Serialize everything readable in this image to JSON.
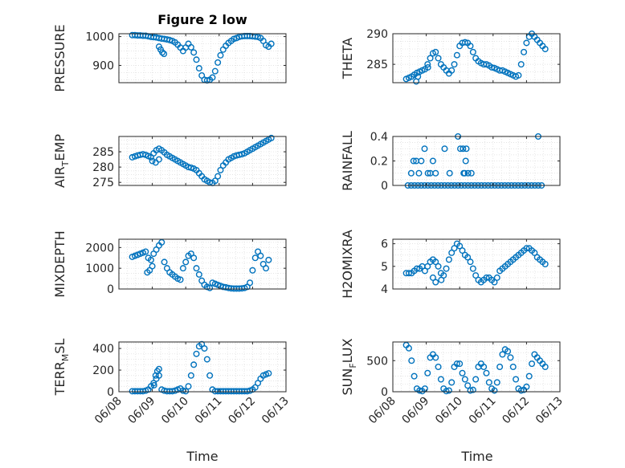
{
  "figure": {
    "title": "Figure 2 low",
    "bg": "#ffffff"
  },
  "style": {
    "marker_color": "#0072bd",
    "axis_color": "#262626",
    "grid_color": "#dcdcdc"
  },
  "chart_data": [
    {
      "type": "scatter",
      "ylabel_main": "PRESSURE",
      "ylabel_sub": "",
      "title": "Figure 2 low",
      "xlabel": "",
      "xlim": [
        0,
        5
      ],
      "ylim": [
        840,
        1010
      ],
      "yticks": [
        900,
        1000
      ],
      "x": [
        0.4,
        0.48,
        0.56,
        0.64,
        0.72,
        0.8,
        0.88,
        0.96,
        1.04,
        1.12,
        1.2,
        1.28,
        1.36,
        1.44,
        1.52,
        1.6,
        1.68,
        1.76,
        1.84,
        1.92,
        2.0,
        2.08,
        2.16,
        2.24,
        2.32,
        2.4,
        2.48,
        2.56,
        2.64,
        2.72,
        2.8,
        2.88,
        2.96,
        3.04,
        3.12,
        3.2,
        3.28,
        3.36,
        3.44,
        3.52,
        3.6,
        3.68,
        3.76,
        3.84,
        3.92,
        4.0,
        4.08,
        4.16,
        4.24,
        4.32,
        4.4,
        4.48,
        4.56,
        1.2,
        1.25,
        1.3,
        1.35
      ],
      "y": [
        1005,
        1005,
        1004,
        1004,
        1003,
        1003,
        1001,
        999,
        998,
        997,
        995,
        993,
        992,
        990,
        988,
        985,
        980,
        972,
        962,
        950,
        962,
        975,
        963,
        945,
        920,
        890,
        865,
        850,
        848,
        850,
        858,
        880,
        910,
        935,
        955,
        968,
        978,
        985,
        992,
        995,
        999,
        1001,
        1002,
        1002,
        1002,
        1001,
        1000,
        999,
        995,
        985,
        970,
        965,
        975,
        965,
        955,
        945,
        940
      ]
    },
    {
      "type": "scatter",
      "ylabel_main": "THETA",
      "ylabel_sub": "",
      "xlim": [
        0,
        5
      ],
      "ylim": [
        282,
        290
      ],
      "yticks": [
        285,
        290
      ],
      "x": [
        0.4,
        0.48,
        0.56,
        0.64,
        0.72,
        0.8,
        0.88,
        0.96,
        1.04,
        1.12,
        1.2,
        1.28,
        1.36,
        1.44,
        1.52,
        1.6,
        1.68,
        1.76,
        1.84,
        1.92,
        2.0,
        2.08,
        2.16,
        2.24,
        2.32,
        2.4,
        2.48,
        2.56,
        2.64,
        2.72,
        2.8,
        2.88,
        2.96,
        3.04,
        3.12,
        3.2,
        3.28,
        3.36,
        3.44,
        3.52,
        3.6,
        3.68,
        3.76,
        3.84,
        3.92,
        4.0,
        4.08,
        4.16,
        4.24,
        4.32,
        4.4,
        4.48,
        4.56,
        0.7,
        0.75,
        1.05
      ],
      "y": [
        282.6,
        282.8,
        283.0,
        283.3,
        283.6,
        283.8,
        284.0,
        284.2,
        285.0,
        286.0,
        286.8,
        287.0,
        286.0,
        285.0,
        284.5,
        284.0,
        283.5,
        284.0,
        285.0,
        286.5,
        288.0,
        288.5,
        288.6,
        288.5,
        288.0,
        287.0,
        286.0,
        285.5,
        285.2,
        285.0,
        285.0,
        284.8,
        284.5,
        284.4,
        284.2,
        284.0,
        284.0,
        283.8,
        283.6,
        283.4,
        283.2,
        283.0,
        283.2,
        285.0,
        287.0,
        288.5,
        289.5,
        290.2,
        289.5,
        289.0,
        288.5,
        288.0,
        287.5,
        282.2,
        283.0,
        284.5
      ]
    },
    {
      "type": "scatter",
      "ylabel_main": "AIR",
      "ylabel_sub": "T",
      "ylabel_tail": "EMP",
      "xlim": [
        0,
        5
      ],
      "ylim": [
        274,
        290
      ],
      "yticks": [
        275,
        280,
        285
      ],
      "x": [
        0.4,
        0.48,
        0.56,
        0.64,
        0.72,
        0.8,
        0.88,
        0.96,
        1.04,
        1.12,
        1.2,
        1.28,
        1.36,
        1.44,
        1.52,
        1.6,
        1.68,
        1.76,
        1.84,
        1.92,
        2.0,
        2.08,
        2.16,
        2.24,
        2.32,
        2.4,
        2.48,
        2.56,
        2.64,
        2.72,
        2.8,
        2.88,
        2.96,
        3.04,
        3.12,
        3.2,
        3.28,
        3.36,
        3.44,
        3.52,
        3.6,
        3.68,
        3.76,
        3.84,
        3.92,
        4.0,
        4.08,
        4.16,
        4.24,
        4.32,
        4.4,
        4.48,
        4.56,
        1.0,
        1.1,
        1.2
      ],
      "y": [
        283.2,
        283.5,
        283.8,
        284.0,
        284.2,
        284.0,
        283.6,
        283.2,
        284.5,
        285.5,
        286.0,
        285.5,
        284.8,
        284.0,
        283.5,
        283.0,
        282.5,
        282.0,
        281.5,
        281.0,
        280.5,
        280.0,
        279.8,
        279.5,
        279.0,
        278.0,
        277.0,
        276.0,
        275.5,
        275.0,
        274.8,
        275.5,
        277.0,
        279.0,
        280.5,
        281.5,
        282.5,
        283.0,
        283.5,
        283.8,
        284.0,
        284.2,
        284.5,
        285.0,
        285.5,
        286.0,
        286.5,
        287.0,
        287.5,
        288.0,
        288.5,
        289.0,
        289.5,
        282.0,
        281.5,
        282.5
      ]
    },
    {
      "type": "scatter",
      "ylabel_main": "RAINFALL",
      "ylabel_sub": "",
      "xlim": [
        0,
        5
      ],
      "ylim": [
        0,
        0.4
      ],
      "yticks": [
        0,
        0.2,
        0.4
      ],
      "x": [
        0.45,
        0.55,
        0.65,
        0.75,
        0.85,
        0.95,
        1.05,
        1.15,
        1.25,
        1.35,
        1.45,
        1.55,
        1.65,
        1.75,
        1.85,
        1.95,
        2.05,
        2.15,
        2.25,
        2.35,
        2.45,
        2.55,
        2.65,
        2.75,
        2.85,
        2.95,
        3.05,
        3.15,
        3.25,
        3.35,
        3.45,
        3.55,
        3.65,
        3.75,
        3.85,
        3.95,
        4.05,
        4.15,
        4.25,
        4.35,
        4.45,
        0.55,
        0.62,
        0.7,
        0.78,
        0.85,
        0.95,
        1.05,
        1.12,
        1.2,
        1.28,
        1.55,
        1.7,
        1.95,
        2.02,
        2.1,
        2.15,
        2.2,
        2.25,
        2.12,
        2.18,
        2.35,
        4.35
      ],
      "y": [
        0,
        0,
        0,
        0,
        0,
        0,
        0,
        0,
        0,
        0,
        0,
        0,
        0,
        0,
        0,
        0,
        0,
        0,
        0,
        0,
        0,
        0,
        0,
        0,
        0,
        0,
        0,
        0,
        0,
        0,
        0,
        0,
        0,
        0,
        0,
        0,
        0,
        0,
        0,
        0,
        0,
        0.1,
        0.2,
        0.2,
        0.1,
        0.2,
        0.3,
        0.1,
        0.1,
        0.2,
        0.1,
        0.3,
        0.1,
        0.4,
        0.3,
        0.3,
        0.1,
        0.3,
        0.1,
        0.1,
        0.2,
        0.1,
        0.4
      ]
    },
    {
      "type": "scatter",
      "ylabel_main": "MIXDEPTH",
      "ylabel_sub": "",
      "xlim": [
        0,
        5
      ],
      "ylim": [
        0,
        2400
      ],
      "yticks": [
        0,
        1000,
        2000
      ],
      "x": [
        0.4,
        0.48,
        0.56,
        0.64,
        0.72,
        0.8,
        0.88,
        0.96,
        1.04,
        1.12,
        1.2,
        1.28,
        1.36,
        1.44,
        1.52,
        1.6,
        1.68,
        1.76,
        1.84,
        1.92,
        2.0,
        2.08,
        2.16,
        2.24,
        2.32,
        2.4,
        2.48,
        2.56,
        2.64,
        2.72,
        2.8,
        2.88,
        2.96,
        3.04,
        3.12,
        3.2,
        3.28,
        3.36,
        3.44,
        3.52,
        3.6,
        3.68,
        3.76,
        3.84,
        3.92,
        4.0,
        4.08,
        4.16,
        4.24,
        4.32,
        4.4,
        4.48,
        0.85,
        0.92,
        1.0
      ],
      "y": [
        1550,
        1600,
        1650,
        1700,
        1750,
        1800,
        1500,
        1400,
        1700,
        1900,
        2100,
        2250,
        1300,
        1000,
        800,
        700,
        600,
        500,
        450,
        1000,
        1300,
        1600,
        1700,
        1500,
        1000,
        700,
        400,
        200,
        100,
        50,
        300,
        250,
        200,
        150,
        100,
        80,
        50,
        30,
        20,
        20,
        20,
        30,
        50,
        100,
        300,
        900,
        1500,
        1800,
        1600,
        1200,
        1000,
        1400,
        800,
        900,
        1100
      ]
    },
    {
      "type": "scatter",
      "ylabel_main": "H2OMIXRA",
      "ylabel_sub": "",
      "xlim": [
        0,
        5
      ],
      "ylim": [
        4,
        6.2
      ],
      "yticks": [
        4,
        5,
        6
      ],
      "x": [
        0.4,
        0.48,
        0.56,
        0.64,
        0.72,
        0.8,
        0.88,
        0.96,
        1.04,
        1.12,
        1.2,
        1.28,
        1.36,
        1.44,
        1.52,
        1.6,
        1.68,
        1.76,
        1.84,
        1.92,
        2.0,
        2.08,
        2.16,
        2.24,
        2.32,
        2.4,
        2.48,
        2.56,
        2.64,
        2.72,
        2.8,
        2.88,
        2.96,
        3.04,
        3.12,
        3.2,
        3.28,
        3.36,
        3.44,
        3.52,
        3.6,
        3.68,
        3.76,
        3.84,
        3.92,
        4.0,
        4.08,
        4.16,
        4.24,
        4.32,
        4.4,
        4.48,
        4.56,
        1.2,
        1.28,
        1.45
      ],
      "y": [
        4.7,
        4.7,
        4.7,
        4.8,
        4.9,
        4.9,
        5.0,
        4.8,
        5.0,
        5.2,
        5.3,
        5.2,
        5.0,
        4.7,
        4.6,
        4.9,
        5.3,
        5.6,
        5.8,
        6.0,
        5.9,
        5.7,
        5.5,
        5.4,
        5.2,
        4.9,
        4.6,
        4.4,
        4.3,
        4.4,
        4.5,
        4.5,
        4.4,
        4.3,
        4.5,
        4.8,
        4.9,
        5.0,
        5.1,
        5.2,
        5.3,
        5.4,
        5.5,
        5.6,
        5.7,
        5.8,
        5.8,
        5.7,
        5.6,
        5.4,
        5.3,
        5.2,
        5.1,
        4.5,
        4.3,
        4.4
      ]
    },
    {
      "type": "scatter",
      "ylabel_main": "TERR",
      "ylabel_sub": "M",
      "ylabel_tail": "SL",
      "xlim": [
        0,
        5
      ],
      "ylim": [
        0,
        460
      ],
      "yticks": [
        0,
        200,
        400
      ],
      "x": [
        0.4,
        0.48,
        0.56,
        0.64,
        0.72,
        0.8,
        0.88,
        0.96,
        1.04,
        1.12,
        1.2,
        1.28,
        1.36,
        1.44,
        1.52,
        1.6,
        1.68,
        1.76,
        1.84,
        1.92,
        2.0,
        2.08,
        2.16,
        2.24,
        2.32,
        2.4,
        2.48,
        2.56,
        2.64,
        2.72,
        2.8,
        2.88,
        2.96,
        3.04,
        3.12,
        3.2,
        3.28,
        3.36,
        3.44,
        3.52,
        3.6,
        3.68,
        3.76,
        3.84,
        3.92,
        4.0,
        4.08,
        4.16,
        4.24,
        4.32,
        4.4,
        4.48,
        1.05,
        1.1,
        1.15,
        1.2
      ],
      "y": [
        5,
        5,
        5,
        5,
        5,
        10,
        20,
        50,
        80,
        120,
        150,
        20,
        10,
        5,
        5,
        5,
        10,
        20,
        30,
        10,
        5,
        50,
        150,
        250,
        350,
        420,
        440,
        400,
        300,
        150,
        20,
        5,
        5,
        5,
        5,
        5,
        5,
        5,
        5,
        5,
        5,
        5,
        5,
        5,
        10,
        20,
        40,
        80,
        120,
        150,
        160,
        170,
        60,
        150,
        190,
        210
      ]
    },
    {
      "type": "scatter",
      "ylabel_main": "SUN",
      "ylabel_sub": "F",
      "ylabel_tail": "LUX",
      "xlim": [
        0,
        5
      ],
      "ylim": [
        0,
        800
      ],
      "yticks": [
        0,
        500
      ],
      "x": [
        0.4,
        0.48,
        0.56,
        0.64,
        0.72,
        0.8,
        0.88,
        0.96,
        1.04,
        1.12,
        1.2,
        1.28,
        1.36,
        1.44,
        1.52,
        1.6,
        1.68,
        1.76,
        1.84,
        1.92,
        2.0,
        2.08,
        2.16,
        2.24,
        2.32,
        2.4,
        2.48,
        2.56,
        2.64,
        2.72,
        2.8,
        2.88,
        2.96,
        3.04,
        3.12,
        3.2,
        3.28,
        3.36,
        3.44,
        3.52,
        3.6,
        3.68,
        3.76,
        3.84,
        3.92,
        4.0,
        4.08,
        4.16,
        4.24,
        4.32,
        4.4,
        4.48,
        4.56
      ],
      "y": [
        750,
        700,
        500,
        250,
        50,
        20,
        10,
        50,
        300,
        550,
        600,
        550,
        400,
        200,
        50,
        10,
        20,
        150,
        400,
        450,
        450,
        300,
        200,
        100,
        20,
        30,
        200,
        400,
        450,
        400,
        300,
        150,
        50,
        20,
        150,
        400,
        600,
        680,
        650,
        550,
        400,
        200,
        50,
        20,
        30,
        80,
        250,
        450,
        600,
        550,
        500,
        450,
        400
      ]
    }
  ],
  "xaxis": {
    "ticks": [
      0,
      1,
      2,
      3,
      4,
      5
    ],
    "tick_labels": [
      "06/08",
      "06/09",
      "06/10",
      "06/11",
      "06/12",
      "06/13"
    ],
    "label": "Time"
  }
}
